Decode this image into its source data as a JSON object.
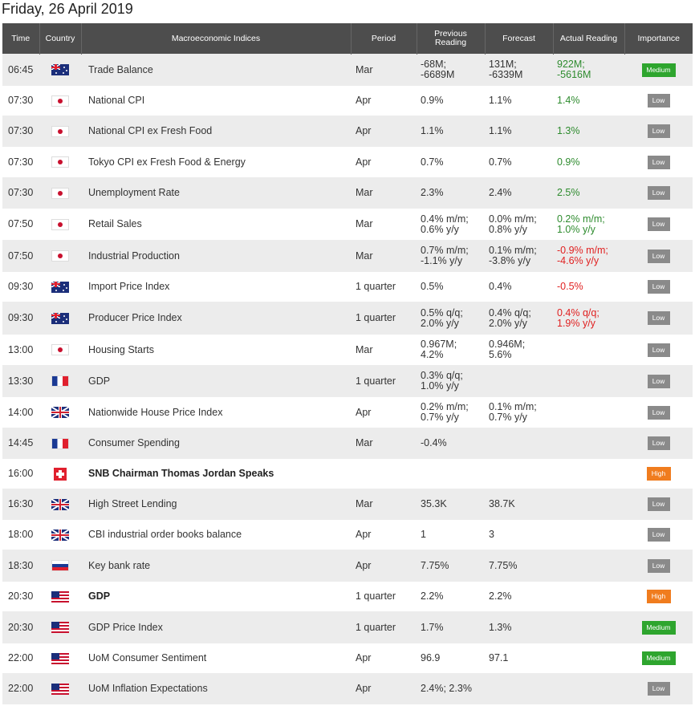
{
  "title": "Friday, 26 April 2019",
  "headers": {
    "time": "Time",
    "country": "Country",
    "indices": "Macroeconomic Indices",
    "period": "Period",
    "previous_line1": "Previous",
    "previous_line2": "Reading",
    "forecast": "Forecast",
    "actual": "Actual Reading",
    "importance": "Importance"
  },
  "colors": {
    "header_bg": "#4d4d4d",
    "positive": "#2e8b2e",
    "negative": "#e02020",
    "low": "#8a8a8a",
    "medium": "#2ea52e",
    "high": "#f07c1e"
  },
  "rows": [
    {
      "time": "06:45",
      "country": "AU",
      "flag_icon": "australia-flag-icon",
      "index": "Trade Balance",
      "period": "Mar",
      "previous": [
        "-68M;",
        "-6689M"
      ],
      "forecast": [
        "131M;",
        "-6339M"
      ],
      "actual": [
        "922M;",
        "-5616M"
      ],
      "actual_color": "green",
      "importance": "Medium"
    },
    {
      "time": "07:30",
      "country": "JP",
      "flag_icon": "japan-flag-icon",
      "index": "National CPI",
      "period": "Apr",
      "previous": [
        "0.9%"
      ],
      "forecast": [
        "1.1%"
      ],
      "actual": [
        "1.4%"
      ],
      "actual_color": "green",
      "importance": "Low"
    },
    {
      "time": "07:30",
      "country": "JP",
      "flag_icon": "japan-flag-icon",
      "index": "National CPI ex Fresh Food",
      "period": "Apr",
      "previous": [
        "1.1%"
      ],
      "forecast": [
        "1.1%"
      ],
      "actual": [
        "1.3%"
      ],
      "actual_color": "green",
      "importance": "Low"
    },
    {
      "time": "07:30",
      "country": "JP",
      "flag_icon": "japan-flag-icon",
      "index": "Tokyo CPI ex Fresh Food & Energy",
      "period": "Apr",
      "previous": [
        "0.7%"
      ],
      "forecast": [
        "0.7%"
      ],
      "actual": [
        "0.9%"
      ],
      "actual_color": "green",
      "importance": "Low"
    },
    {
      "time": "07:30",
      "country": "JP",
      "flag_icon": "japan-flag-icon",
      "index": "Unemployment Rate",
      "period": "Mar",
      "previous": [
        "2.3%"
      ],
      "forecast": [
        "2.4%"
      ],
      "actual": [
        "2.5%"
      ],
      "actual_color": "green",
      "importance": "Low"
    },
    {
      "time": "07:50",
      "country": "JP",
      "flag_icon": "japan-flag-icon",
      "index": "Retail Sales",
      "period": "Mar",
      "previous": [
        "0.4% m/m;",
        "0.6% y/y"
      ],
      "forecast": [
        "0.0% m/m;",
        "0.8% y/y"
      ],
      "actual": [
        "0.2% m/m;",
        "1.0% y/y"
      ],
      "actual_color": "green",
      "importance": "Low"
    },
    {
      "time": "07:50",
      "country": "JP",
      "flag_icon": "japan-flag-icon",
      "index": "Industrial Production",
      "period": "Mar",
      "previous": [
        "0.7% m/m;",
        "-1.1% y/y"
      ],
      "forecast": [
        "0.1% m/m;",
        "-3.8% y/y"
      ],
      "actual": [
        "-0.9% m/m;",
        "-4.6% y/y"
      ],
      "actual_color": "red",
      "importance": "Low"
    },
    {
      "time": "09:30",
      "country": "AU",
      "flag_icon": "australia-flag-icon",
      "index": "Import Price Index",
      "period": "1 quarter",
      "previous": [
        "0.5%"
      ],
      "forecast": [
        "0.4%"
      ],
      "actual": [
        "-0.5%"
      ],
      "actual_color": "red",
      "importance": "Low"
    },
    {
      "time": "09:30",
      "country": "AU",
      "flag_icon": "australia-flag-icon",
      "index": "Producer Price Index",
      "period": "1 quarter",
      "previous": [
        "0.5% q/q;",
        "2.0% y/y"
      ],
      "forecast": [
        "0.4% q/q;",
        "2.0% y/y"
      ],
      "actual": [
        "0.4% q/q;",
        "1.9% y/y"
      ],
      "actual_color": "red",
      "importance": "Low"
    },
    {
      "time": "13:00",
      "country": "JP",
      "flag_icon": "japan-flag-icon",
      "index": "Housing Starts",
      "period": "Mar",
      "previous": [
        "0.967M;",
        "4.2%"
      ],
      "forecast": [
        "0.946M;",
        "5.6%"
      ],
      "actual": [],
      "actual_color": "",
      "importance": "Low"
    },
    {
      "time": "13:30",
      "country": "FR",
      "flag_icon": "france-flag-icon",
      "index": "GDP",
      "period": "1 quarter",
      "previous": [
        "0.3% q/q;",
        "1.0% y/y"
      ],
      "forecast": [],
      "actual": [],
      "actual_color": "",
      "importance": "Low"
    },
    {
      "time": "14:00",
      "country": "GB",
      "flag_icon": "uk-flag-icon",
      "index": "Nationwide House Price Index",
      "period": "Apr",
      "previous": [
        "0.2% m/m;",
        "0.7% y/y"
      ],
      "forecast": [
        "0.1% m/m;",
        "0.7% y/y"
      ],
      "actual": [],
      "actual_color": "",
      "importance": "Low"
    },
    {
      "time": "14:45",
      "country": "FR",
      "flag_icon": "france-flag-icon",
      "index": "Consumer Spending",
      "period": "Mar",
      "previous": [
        "-0.4%"
      ],
      "forecast": [],
      "actual": [],
      "actual_color": "",
      "importance": "Low"
    },
    {
      "time": "16:00",
      "country": "CH",
      "flag_icon": "switzerland-flag-icon",
      "index": "SNB Chairman Thomas Jordan Speaks",
      "bold": true,
      "period": "",
      "previous": [],
      "forecast": [],
      "actual": [],
      "actual_color": "",
      "importance": "High"
    },
    {
      "time": "16:30",
      "country": "GB",
      "flag_icon": "uk-flag-icon",
      "index": "High Street Lending",
      "period": "Mar",
      "previous": [
        "35.3K"
      ],
      "forecast": [
        "38.7K"
      ],
      "actual": [],
      "actual_color": "",
      "importance": "Low"
    },
    {
      "time": "18:00",
      "country": "GB",
      "flag_icon": "uk-flag-icon",
      "index": "CBI industrial order books balance",
      "period": "Apr",
      "previous": [
        "1"
      ],
      "forecast": [
        "3"
      ],
      "actual": [],
      "actual_color": "",
      "importance": "Low"
    },
    {
      "time": "18:30",
      "country": "RU",
      "flag_icon": "russia-flag-icon",
      "index": "Key bank rate",
      "period": "Apr",
      "previous": [
        "7.75%"
      ],
      "forecast": [
        "7.75%"
      ],
      "actual": [],
      "actual_color": "",
      "importance": "Low"
    },
    {
      "time": "20:30",
      "country": "US",
      "flag_icon": "usa-flag-icon",
      "index": "GDP",
      "bold": true,
      "period": "1 quarter",
      "previous": [
        "2.2%"
      ],
      "forecast": [
        "2.2%"
      ],
      "actual": [],
      "actual_color": "",
      "importance": "High"
    },
    {
      "time": "20:30",
      "country": "US",
      "flag_icon": "usa-flag-icon",
      "index": "GDP Price Index",
      "period": "1 quarter",
      "previous": [
        "1.7%"
      ],
      "forecast": [
        "1.3%"
      ],
      "actual": [],
      "actual_color": "",
      "importance": "Medium"
    },
    {
      "time": "22:00",
      "country": "US",
      "flag_icon": "usa-flag-icon",
      "index": "UoM Consumer Sentiment",
      "period": "Apr",
      "previous": [
        "96.9"
      ],
      "forecast": [
        "97.1"
      ],
      "actual": [],
      "actual_color": "",
      "importance": "Medium"
    },
    {
      "time": "22:00",
      "country": "US",
      "flag_icon": "usa-flag-icon",
      "index": "UoM Inflation Expectations",
      "period": "Apr",
      "previous": [
        "2.4%; 2.3%"
      ],
      "forecast": [],
      "actual": [],
      "actual_color": "",
      "importance": "Low"
    }
  ]
}
